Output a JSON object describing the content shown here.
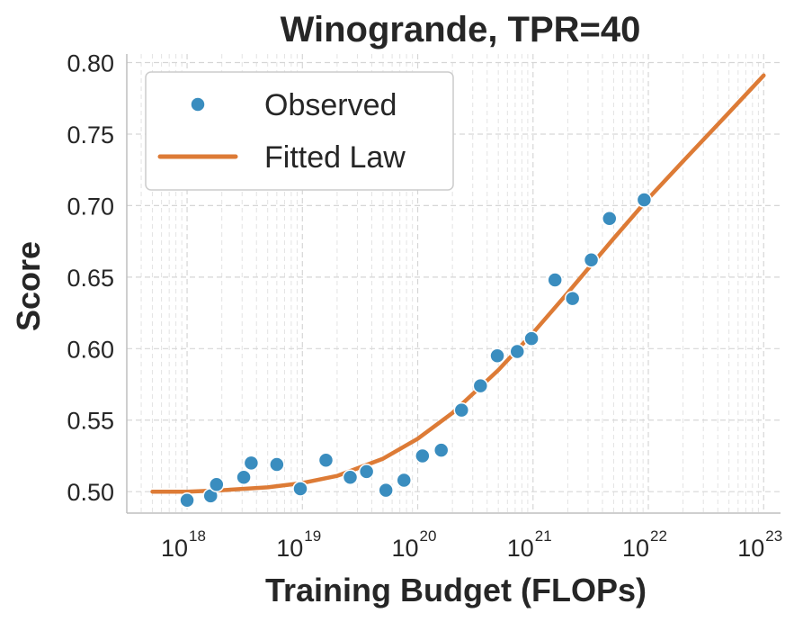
{
  "chart_data": {
    "type": "scatter",
    "title": "Winogrande, TPR=40",
    "xlabel": "Training Budget (FLOPs)",
    "ylabel": "Score",
    "xscale": "log",
    "xlim": [
      3e+17,
      1.4e+23
    ],
    "ylim": [
      0.485,
      0.806
    ],
    "x_ticks": [
      {
        "value": 1e+18,
        "base": "10",
        "exp": "18"
      },
      {
        "value": 1e+19,
        "base": "10",
        "exp": "19"
      },
      {
        "value": 1e+20,
        "base": "10",
        "exp": "20"
      },
      {
        "value": 1e+21,
        "base": "10",
        "exp": "21"
      },
      {
        "value": 1e+22,
        "base": "10",
        "exp": "22"
      },
      {
        "value": 1e+23,
        "base": "10",
        "exp": "23"
      }
    ],
    "y_ticks": [
      {
        "value": 0.5,
        "label": "0.50"
      },
      {
        "value": 0.55,
        "label": "0.55"
      },
      {
        "value": 0.6,
        "label": "0.60"
      },
      {
        "value": 0.65,
        "label": "0.65"
      },
      {
        "value": 0.7,
        "label": "0.70"
      },
      {
        "value": 0.75,
        "label": "0.75"
      },
      {
        "value": 0.8,
        "label": "0.80"
      }
    ],
    "grid": true,
    "legend_position": "top-left",
    "series": [
      {
        "name": "Observed",
        "kind": "scatter",
        "color": "#3a8dbf",
        "points": [
          {
            "x": 1e+18,
            "y": 0.494
          },
          {
            "x": 1.6e+18,
            "y": 0.497
          },
          {
            "x": 1.8e+18,
            "y": 0.505
          },
          {
            "x": 3.1e+18,
            "y": 0.51
          },
          {
            "x": 3.6e+18,
            "y": 0.52
          },
          {
            "x": 6e+18,
            "y": 0.519
          },
          {
            "x": 9.6e+18,
            "y": 0.502
          },
          {
            "x": 1.6e+19,
            "y": 0.522
          },
          {
            "x": 2.6e+19,
            "y": 0.51
          },
          {
            "x": 3.6e+19,
            "y": 0.514
          },
          {
            "x": 5.3e+19,
            "y": 0.501
          },
          {
            "x": 7.6e+19,
            "y": 0.508
          },
          {
            "x": 1.1e+20,
            "y": 0.525
          },
          {
            "x": 1.6e+20,
            "y": 0.529
          },
          {
            "x": 2.4e+20,
            "y": 0.557
          },
          {
            "x": 3.5e+20,
            "y": 0.574
          },
          {
            "x": 4.9e+20,
            "y": 0.595
          },
          {
            "x": 7.3e+20,
            "y": 0.598
          },
          {
            "x": 9.7e+20,
            "y": 0.607
          },
          {
            "x": 1.55e+21,
            "y": 0.648
          },
          {
            "x": 2.2e+21,
            "y": 0.635
          },
          {
            "x": 3.2e+21,
            "y": 0.662
          },
          {
            "x": 4.6e+21,
            "y": 0.691
          },
          {
            "x": 9.2e+21,
            "y": 0.704
          }
        ]
      },
      {
        "name": "Fitted Law",
        "kind": "line",
        "color": "#dd7b36",
        "points": [
          {
            "x": 5e+17,
            "y": 0.5
          },
          {
            "x": 1e+18,
            "y": 0.5
          },
          {
            "x": 2e+18,
            "y": 0.501
          },
          {
            "x": 5e+18,
            "y": 0.503
          },
          {
            "x": 1e+19,
            "y": 0.506
          },
          {
            "x": 2e+19,
            "y": 0.511
          },
          {
            "x": 5e+19,
            "y": 0.523
          },
          {
            "x": 1e+20,
            "y": 0.537
          },
          {
            "x": 2e+20,
            "y": 0.555
          },
          {
            "x": 5e+20,
            "y": 0.585
          },
          {
            "x": 1e+21,
            "y": 0.611
          },
          {
            "x": 2e+21,
            "y": 0.639
          },
          {
            "x": 5e+21,
            "y": 0.677
          },
          {
            "x": 1e+22,
            "y": 0.705
          },
          {
            "x": 2e+22,
            "y": 0.731
          },
          {
            "x": 5e+22,
            "y": 0.765
          },
          {
            "x": 1e+23,
            "y": 0.791
          }
        ]
      }
    ]
  }
}
